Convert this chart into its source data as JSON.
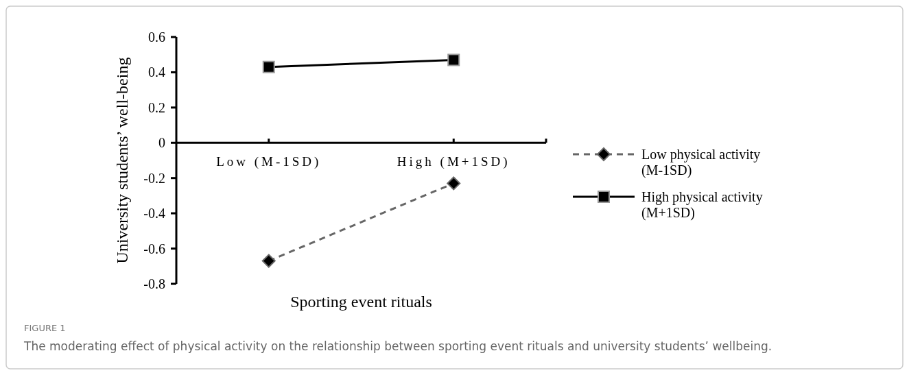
{
  "chart_data": {
    "type": "line",
    "xlabel": "Sporting event rituals",
    "ylabel": "University students’ well-being",
    "categories": [
      "Low (M-1SD)",
      "High (M+1SD)"
    ],
    "ylim": [
      -0.8,
      0.6
    ],
    "yticks": [
      -0.8,
      -0.6,
      -0.4,
      -0.2,
      0,
      0.2,
      0.4,
      0.6
    ],
    "grid": false,
    "legend": "right",
    "series": [
      {
        "name": "Low physical activity (M-1SD)",
        "color": "#666666",
        "values": [
          -0.67,
          -0.23
        ],
        "marker": "diamond",
        "line_style": "dashed"
      },
      {
        "name": "High physical activity (M+1SD)",
        "color": "#000000",
        "values": [
          0.43,
          0.47
        ],
        "marker": "square",
        "line_style": "solid"
      }
    ],
    "annotations": [
      "FIGURE 1",
      "The moderating effect of physical activity on the relationship between sporting event rituals and university students’ wellbeing."
    ]
  }
}
